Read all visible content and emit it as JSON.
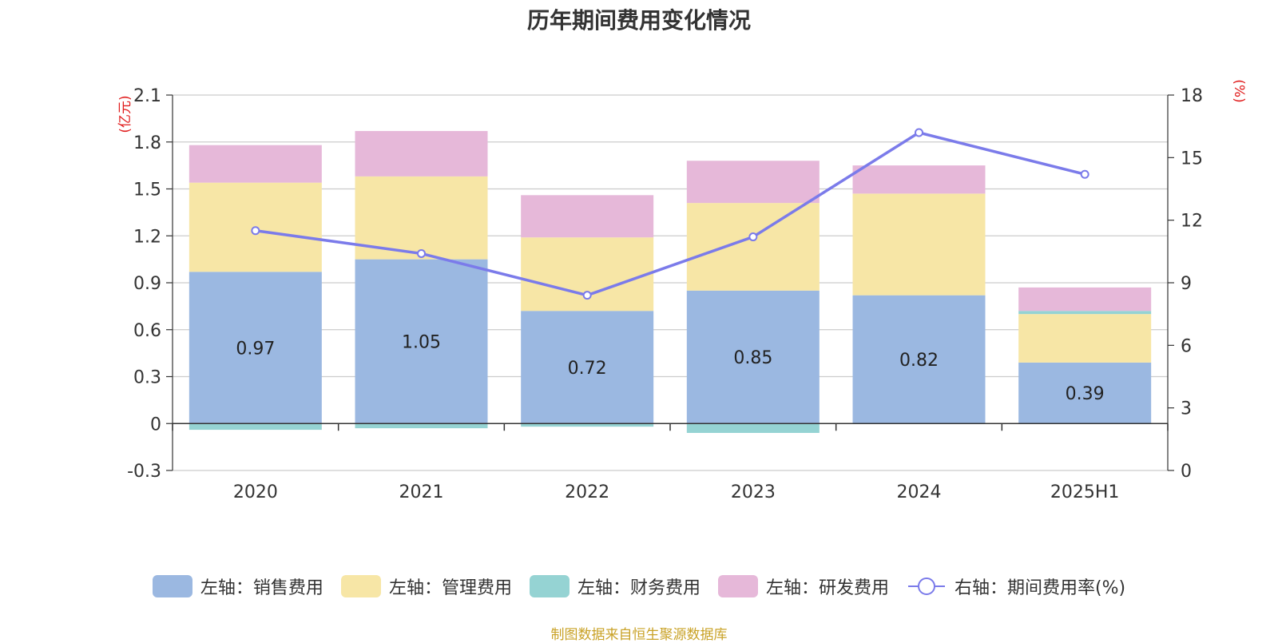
{
  "chart_data": {
    "type": "bar",
    "stacked": true,
    "title": "历年期间费用变化情况",
    "categories": [
      "2020",
      "2021",
      "2022",
      "2023",
      "2024",
      "2025H1"
    ],
    "left_axis": {
      "unit_label": "(亿元)",
      "ylim": [
        -0.3,
        2.1
      ],
      "ticks": [
        -0.3,
        0,
        0.3,
        0.6,
        0.9,
        1.2,
        1.5,
        1.8,
        2.1
      ],
      "tick_labels": [
        "-0.3",
        "0",
        "0.3",
        "0.6",
        "0.9",
        "1.2",
        "1.5",
        "1.8",
        "2.1"
      ]
    },
    "right_axis": {
      "unit_label": "(%)",
      "ylim": [
        0,
        18
      ],
      "ticks": [
        0,
        3,
        6,
        9,
        12,
        15,
        18
      ],
      "tick_labels": [
        "0",
        "3",
        "6",
        "9",
        "12",
        "15",
        "18"
      ]
    },
    "series": [
      {
        "name": "左轴：销售费用",
        "axis": "left",
        "color": "#9bb8e1",
        "values": [
          0.97,
          1.05,
          0.72,
          0.85,
          0.82,
          0.39
        ],
        "labels": [
          "0.97",
          "1.05",
          "0.72",
          "0.85",
          "0.82",
          "0.39"
        ]
      },
      {
        "name": "左轴：管理费用",
        "axis": "left",
        "color": "#f7e6a6",
        "values": [
          0.57,
          0.53,
          0.47,
          0.56,
          0.65,
          0.31
        ]
      },
      {
        "name": "左轴：财务费用",
        "axis": "left",
        "color": "#95d3d3",
        "values": [
          -0.04,
          -0.03,
          -0.02,
          -0.06,
          0.0,
          0.02
        ]
      },
      {
        "name": "左轴：研发费用",
        "axis": "left",
        "color": "#e6b8d9",
        "values": [
          0.24,
          0.29,
          0.27,
          0.27,
          0.18,
          0.15
        ]
      },
      {
        "name": "右轴：期间费用率(%)",
        "axis": "right",
        "type": "line",
        "color": "#7b7bea",
        "values": [
          11.5,
          10.4,
          8.4,
          11.2,
          16.2,
          14.2
        ]
      }
    ],
    "legend_position": "bottom",
    "grid": true
  },
  "source_note": "制图数据来自恒生聚源数据库"
}
